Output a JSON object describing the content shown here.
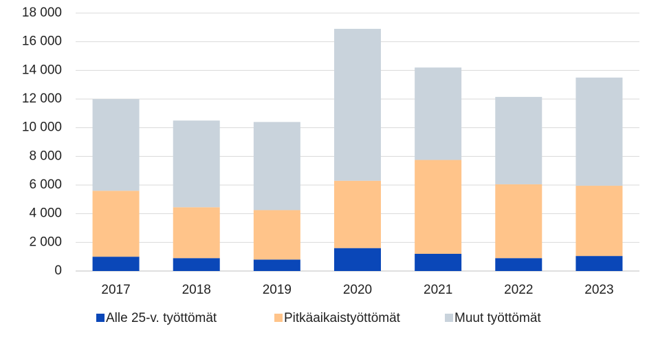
{
  "chart_data": {
    "type": "stacked_bar",
    "categories": [
      "2017",
      "2018",
      "2019",
      "2020",
      "2021",
      "2022",
      "2023"
    ],
    "series": [
      {
        "name": "Alle 25-v. työttömät",
        "color": "#0a47b8",
        "values": [
          1000,
          900,
          800,
          1600,
          1200,
          900,
          1050
        ]
      },
      {
        "name": "Pitkäaikaistyöttömät",
        "color": "#ffc48a",
        "values": [
          4600,
          3550,
          3450,
          4700,
          6550,
          5150,
          4900
        ]
      },
      {
        "name": "Muut työttömät",
        "color": "#c9d3dc",
        "values": [
          6400,
          6050,
          6150,
          10600,
          6450,
          6100,
          7550
        ]
      }
    ],
    "ylim": [
      0,
      18000
    ],
    "yticks": [
      0,
      {
        "value": 2000,
        "label": "2 000"
      },
      {
        "value": 4000,
        "label": "4 000"
      },
      {
        "value": 6000,
        "label": "6 000"
      },
      {
        "value": 8000,
        "label": "8 000"
      },
      {
        "value": 10000,
        "label": "10 000"
      },
      {
        "value": 12000,
        "label": "12 000"
      },
      {
        "value": 14000,
        "label": "14 000"
      },
      {
        "value": 16000,
        "label": "16 000"
      },
      {
        "value": 18000,
        "label": "18 000"
      }
    ],
    "grid": true,
    "legend": "bottom"
  }
}
